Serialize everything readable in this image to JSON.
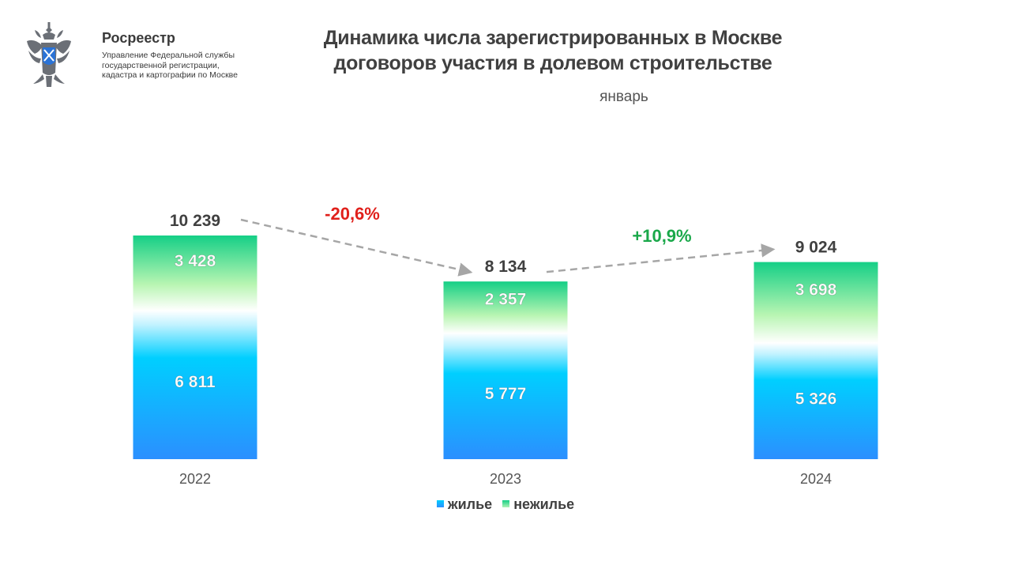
{
  "org": {
    "name": "Росреестр",
    "subtitle": "Управление Федеральной службы государственной регистрации, кадастра и картографии по Москве"
  },
  "colors": {
    "residential_top": "#00cfff",
    "residential_bottom": "#2b8fff",
    "nonresidential_top": "#15cf86",
    "nonresidential_bottom": "#aef3b6",
    "negative": "#e0201b",
    "positive": "#1aa84a",
    "arrow": "#a6a6a6"
  },
  "chart_data": {
    "type": "bar",
    "stacked": true,
    "title": "Динамика числа зарегистрированных в Москве договоров участия в долевом строительстве",
    "subtitle": "январь",
    "categories": [
      "2022",
      "2023",
      "2024"
    ],
    "series": [
      {
        "name": "жилье",
        "values": [
          6811,
          5777,
          5326
        ],
        "labels": [
          "6 811",
          "5 777",
          "5 326"
        ]
      },
      {
        "name": "нежилье",
        "values": [
          3428,
          2357,
          3698
        ],
        "labels": [
          "3 428",
          "2 357",
          "3 698"
        ]
      }
    ],
    "totals": [
      10239,
      8134,
      9024
    ],
    "total_labels": [
      "10 239",
      "8 134",
      "9 024"
    ],
    "changes": [
      "-20,6%",
      "+10,9%"
    ],
    "legend": [
      "жилье",
      "нежилье"
    ],
    "legend_position": "bottom",
    "ylim": [
      0,
      10239
    ],
    "grid": false
  }
}
